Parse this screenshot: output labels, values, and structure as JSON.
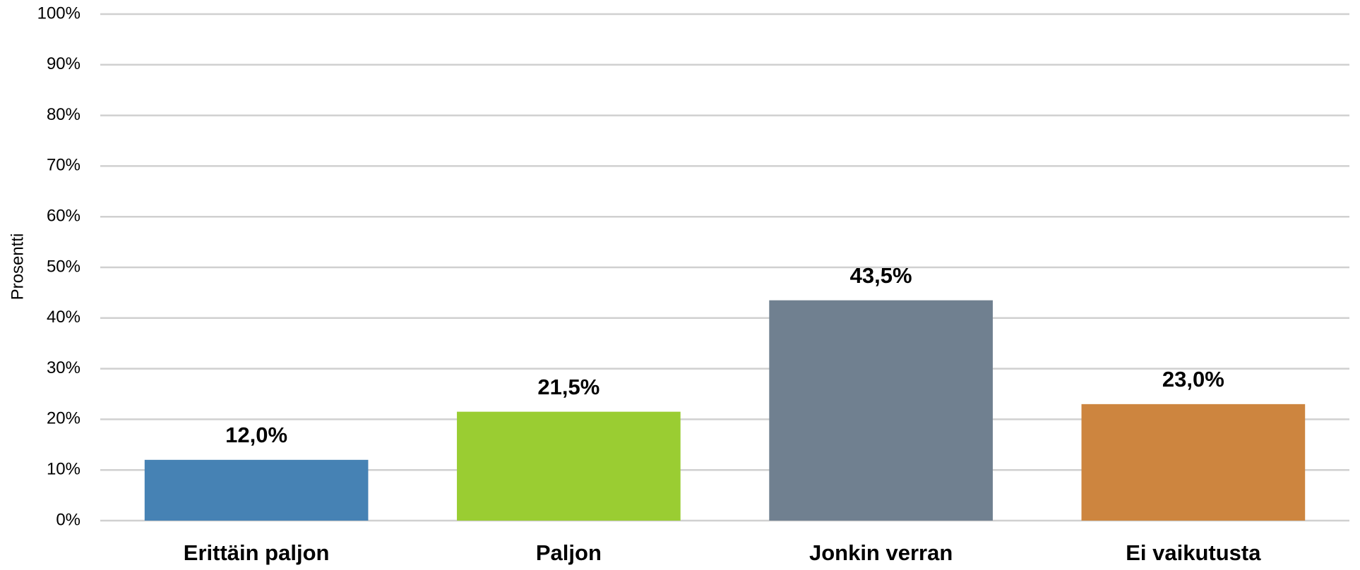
{
  "chart_data": {
    "type": "bar",
    "y_label": "Prosentti",
    "categories": [
      "Erittäin paljon",
      "Paljon",
      "Jonkin verran",
      "Ei vaikutusta"
    ],
    "values": [
      12.0,
      21.5,
      43.5,
      23.0
    ],
    "value_labels": [
      "12,0%",
      "21,5%",
      "43,5%",
      "23,0%"
    ],
    "colors": [
      "#4682b4",
      "#9acd32",
      "#708090",
      "#cd853f"
    ],
    "ylim": [
      0,
      100
    ],
    "yticks": [
      {
        "value": 0,
        "label": "0%"
      },
      {
        "value": 10,
        "label": "10%"
      },
      {
        "value": 20,
        "label": "20%"
      },
      {
        "value": 30,
        "label": "30%"
      },
      {
        "value": 40,
        "label": "40%"
      },
      {
        "value": 50,
        "label": "50%"
      },
      {
        "value": 60,
        "label": "60%"
      },
      {
        "value": 70,
        "label": "70%"
      },
      {
        "value": 80,
        "label": "80%"
      },
      {
        "value": 90,
        "label": "90%"
      },
      {
        "value": 100,
        "label": "100%"
      }
    ],
    "grid": true
  }
}
